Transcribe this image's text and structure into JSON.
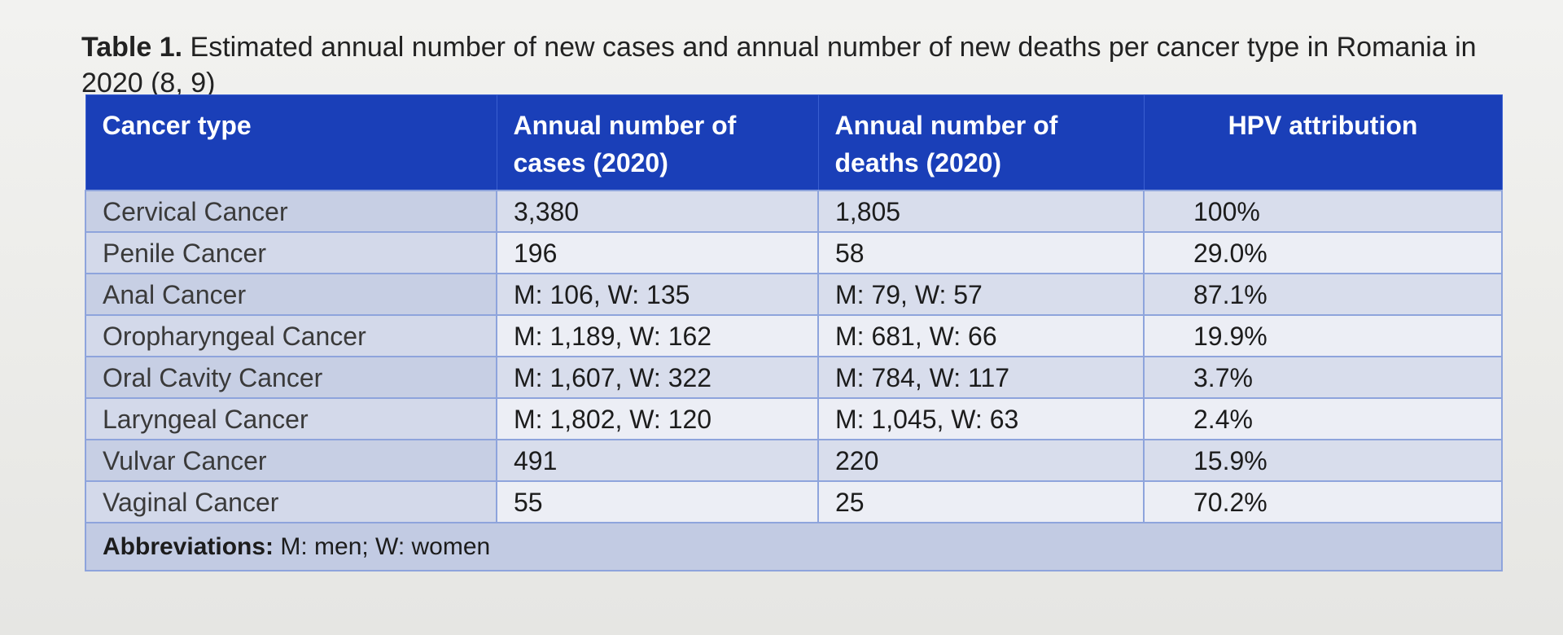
{
  "caption": {
    "label": "Table 1.",
    "text": " Estimated annual number of new cases and annual number of new deaths per cancer type in Romania in 2020 (8, 9)"
  },
  "table": {
    "headers": [
      "Cancer type",
      "Annual number of cases (2020)",
      "Annual number of deaths (2020)",
      "HPV attribution"
    ],
    "rows": [
      [
        "Cervical Cancer",
        "3,380",
        "1,805",
        "100%"
      ],
      [
        "Penile Cancer",
        "196",
        "58",
        "29.0%"
      ],
      [
        "Anal Cancer",
        "M: 106, W: 135",
        "M: 79, W: 57",
        "87.1%"
      ],
      [
        "Oropharyngeal Cancer",
        "M: 1,189, W: 162",
        "M: 681, W: 66",
        "19.9%"
      ],
      [
        "Oral Cavity Cancer",
        "M: 1,607, W: 322",
        "M: 784, W: 117",
        "3.7%"
      ],
      [
        "Laryngeal Cancer",
        "M: 1,802, W: 120",
        "M: 1,045, W: 63",
        "2.4%"
      ],
      [
        "Vulvar Cancer",
        "491",
        "220",
        "15.9%"
      ],
      [
        "Vaginal Cancer",
        "55",
        "25",
        "70.2%"
      ]
    ],
    "footnote_label": "Abbreviations:",
    "footnote_text": " M: men; W: women"
  }
}
